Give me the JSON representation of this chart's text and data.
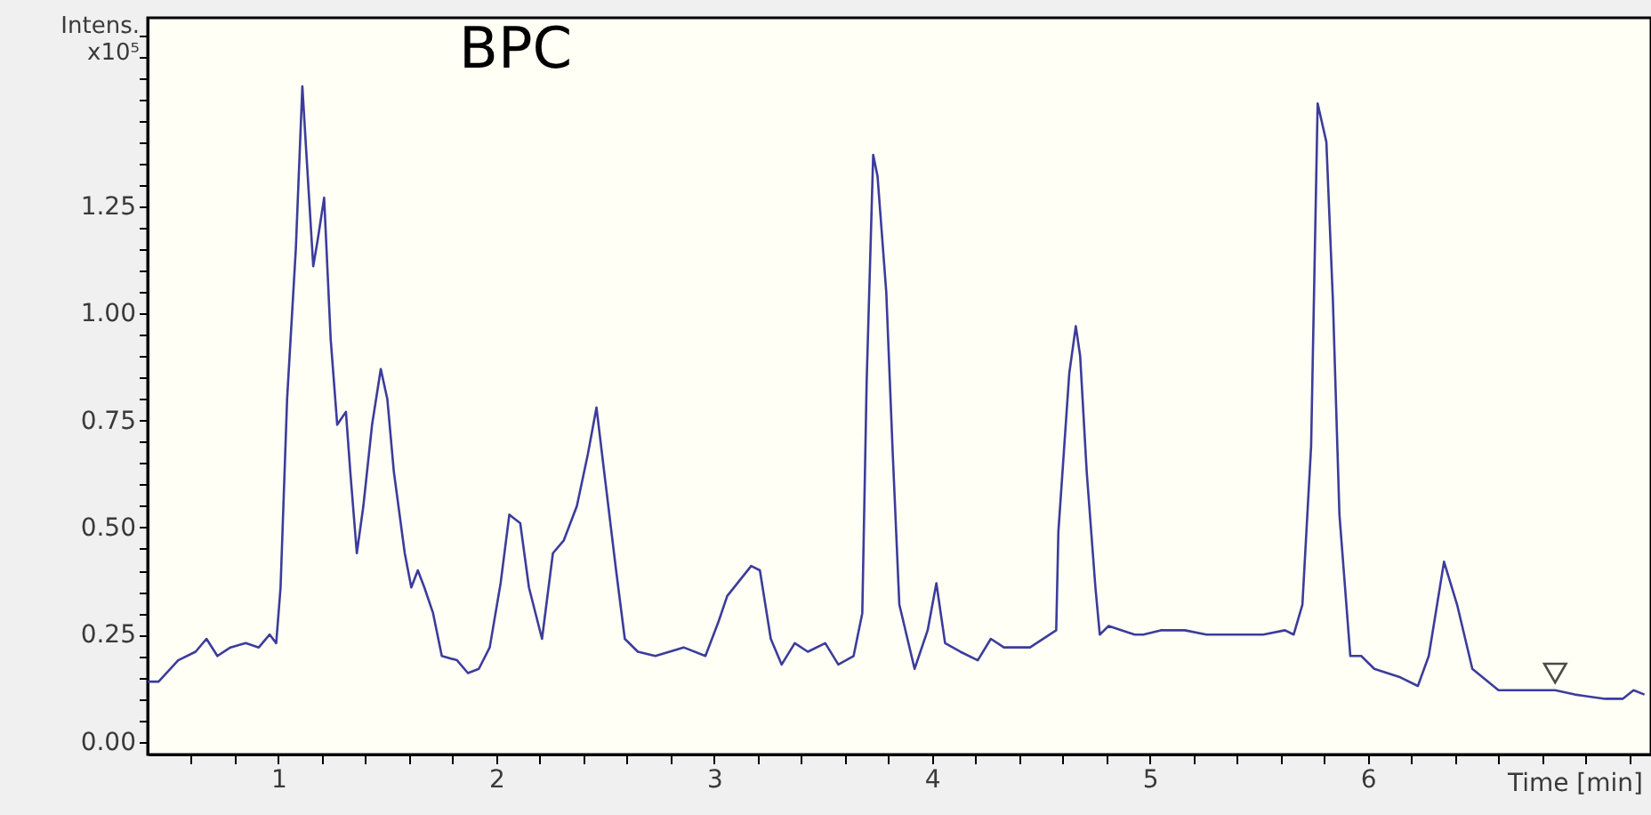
{
  "chart_data": {
    "type": "line",
    "title": "BPC",
    "xlabel": "Time [min]",
    "ylabel": "Intens. x10⁵",
    "xlim": [
      0.4,
      7.3
    ],
    "ylim": [
      -0.03,
      1.69
    ],
    "xticks": [
      {
        "value": 0.6,
        "label": null
      },
      {
        "value": 0.8,
        "label": null
      },
      1,
      {
        "value": 1.2,
        "label": null
      },
      {
        "value": 1.4,
        "label": null
      },
      {
        "value": 1.6,
        "label": null
      },
      {
        "value": 1.8,
        "label": null
      },
      2,
      {
        "value": 2.2,
        "label": null
      },
      {
        "value": 2.4,
        "label": null
      },
      {
        "value": 2.6,
        "label": null
      },
      {
        "value": 2.8,
        "label": null
      },
      3,
      {
        "value": 3.2,
        "label": null
      },
      {
        "value": 3.4,
        "label": null
      },
      {
        "value": 3.6,
        "label": null
      },
      {
        "value": 3.8,
        "label": null
      },
      4,
      {
        "value": 4.2,
        "label": null
      },
      {
        "value": 4.4,
        "label": null
      },
      {
        "value": 4.6,
        "label": null
      },
      {
        "value": 4.8,
        "label": null
      },
      5,
      {
        "value": 5.2,
        "label": null
      },
      {
        "value": 5.4,
        "label": null
      },
      {
        "value": 5.6,
        "label": null
      },
      {
        "value": 5.8,
        "label": null
      },
      6,
      {
        "value": 6.2,
        "label": null
      },
      {
        "value": 6.4,
        "label": null
      },
      {
        "value": 6.6,
        "label": null
      },
      {
        "value": 6.8,
        "label": null
      },
      {
        "value": 7.0,
        "label": null
      },
      {
        "value": 7.2,
        "label": null
      }
    ],
    "yticks": [
      {
        "value": 0,
        "label": "0.00"
      },
      {
        "value": 0.05,
        "label": null
      },
      {
        "value": 0.1,
        "label": null
      },
      {
        "value": 0.15,
        "label": null
      },
      {
        "value": 0.2,
        "label": null
      },
      {
        "value": 0.25,
        "label": "0.25"
      },
      {
        "value": 0.3,
        "label": null
      },
      {
        "value": 0.35,
        "label": null
      },
      {
        "value": 0.4,
        "label": null
      },
      {
        "value": 0.45,
        "label": null
      },
      {
        "value": 0.5,
        "label": "0.50"
      },
      {
        "value": 0.55,
        "label": null
      },
      {
        "value": 0.6,
        "label": null
      },
      {
        "value": 0.65,
        "label": null
      },
      {
        "value": 0.7,
        "label": null
      },
      {
        "value": 0.75,
        "label": "0.75"
      },
      {
        "value": 0.8,
        "label": null
      },
      {
        "value": 0.85,
        "label": null
      },
      {
        "value": 0.9,
        "label": null
      },
      {
        "value": 0.95,
        "label": null
      },
      {
        "value": 1.0,
        "label": "1.00"
      },
      {
        "value": 1.05,
        "label": null
      },
      {
        "value": 1.1,
        "label": null
      },
      {
        "value": 1.15,
        "label": null
      },
      {
        "value": 1.2,
        "label": null
      },
      {
        "value": 1.25,
        "label": "1.25"
      },
      {
        "value": 1.3,
        "label": null
      },
      {
        "value": 1.35,
        "label": null
      },
      {
        "value": 1.4,
        "label": null
      },
      {
        "value": 1.45,
        "label": null
      },
      {
        "value": 1.5,
        "label": null
      },
      {
        "value": 1.55,
        "label": null
      },
      {
        "value": 1.6,
        "label": null
      },
      {
        "value": 1.65,
        "label": null
      }
    ],
    "grid": false,
    "series": [
      {
        "type": "line",
        "color": "#3c3c9c",
        "marker": "none",
        "line_style": "solid",
        "x": [
          0.4,
          0.45,
          0.54,
          0.62,
          0.67,
          0.72,
          0.78,
          0.85,
          0.91,
          0.96,
          0.99,
          1.01,
          1.04,
          1.08,
          1.11,
          1.13,
          1.16,
          1.18,
          1.21,
          1.24,
          1.27,
          1.31,
          1.33,
          1.36,
          1.39,
          1.43,
          1.47,
          1.5,
          1.53,
          1.58,
          1.61,
          1.64,
          1.67,
          1.71,
          1.75,
          1.82,
          1.87,
          1.92,
          1.97,
          2.02,
          2.06,
          2.11,
          2.15,
          2.21,
          2.26,
          2.31,
          2.37,
          2.42,
          2.46,
          2.5,
          2.55,
          2.59,
          2.65,
          2.73,
          2.86,
          2.96,
          3.02,
          3.06,
          3.17,
          3.21,
          3.26,
          3.31,
          3.37,
          3.43,
          3.51,
          3.57,
          3.64,
          3.68,
          3.7,
          3.73,
          3.75,
          3.79,
          3.82,
          3.85,
          3.92,
          3.98,
          4.02,
          4.06,
          4.13,
          4.21,
          4.27,
          4.33,
          4.45,
          4.57,
          4.58,
          4.63,
          4.66,
          4.68,
          4.71,
          4.75,
          4.77,
          4.81,
          4.93,
          4.97,
          5.05,
          5.16,
          5.26,
          5.31,
          5.52,
          5.62,
          5.66,
          5.7,
          5.74,
          5.77,
          5.81,
          5.84,
          5.87,
          5.92,
          5.97,
          6.03,
          6.15,
          6.23,
          6.28,
          6.35,
          6.41,
          6.48,
          6.6,
          6.8,
          6.86,
          6.95,
          7.09,
          7.17,
          7.22,
          7.27
        ],
        "values": [
          0.14,
          0.14,
          0.19,
          0.21,
          0.24,
          0.2,
          0.22,
          0.23,
          0.22,
          0.25,
          0.23,
          0.36,
          0.8,
          1.15,
          1.53,
          1.36,
          1.11,
          1.17,
          1.27,
          0.94,
          0.74,
          0.77,
          0.63,
          0.44,
          0.55,
          0.74,
          0.87,
          0.8,
          0.63,
          0.44,
          0.36,
          0.4,
          0.36,
          0.3,
          0.2,
          0.19,
          0.16,
          0.17,
          0.22,
          0.37,
          0.53,
          0.51,
          0.36,
          0.24,
          0.44,
          0.47,
          0.55,
          0.67,
          0.78,
          0.61,
          0.4,
          0.24,
          0.21,
          0.2,
          0.22,
          0.2,
          0.28,
          0.34,
          0.41,
          0.4,
          0.24,
          0.18,
          0.23,
          0.21,
          0.23,
          0.18,
          0.2,
          0.3,
          0.84,
          1.37,
          1.32,
          1.05,
          0.67,
          0.32,
          0.17,
          0.26,
          0.37,
          0.23,
          0.21,
          0.19,
          0.24,
          0.22,
          0.22,
          0.26,
          0.49,
          0.86,
          0.97,
          0.9,
          0.63,
          0.36,
          0.25,
          0.27,
          0.25,
          0.25,
          0.26,
          0.26,
          0.25,
          0.25,
          0.25,
          0.26,
          0.25,
          0.32,
          0.69,
          1.49,
          1.4,
          1.03,
          0.53,
          0.2,
          0.2,
          0.17,
          0.15,
          0.13,
          0.2,
          0.42,
          0.32,
          0.17,
          0.12,
          0.12,
          0.12,
          0.11,
          0.1,
          0.1,
          0.12,
          0.11
        ]
      },
      {
        "type": "scatter",
        "color": "#000000",
        "marker": "triangle",
        "x": [
          6.86
        ],
        "values": [
          0.16
        ]
      }
    ]
  }
}
